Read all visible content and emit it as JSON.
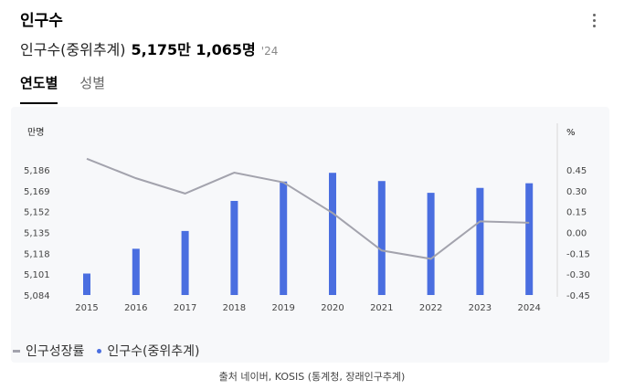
{
  "header": {
    "title": "인구수",
    "metric_label": "인구수(중위추계)",
    "metric_value": "5,175만 1,065명",
    "metric_year": "'24"
  },
  "tabs": [
    {
      "label": "연도별",
      "active": true
    },
    {
      "label": "성별",
      "active": false
    }
  ],
  "icons": {
    "more": "vertical-ellipsis-icon"
  },
  "colors": {
    "bar": "#4a6ee0",
    "line": "#a3a3ad"
  },
  "chart_data": {
    "type": "bar+line",
    "categories": [
      "2015",
      "2016",
      "2017",
      "2018",
      "2019",
      "2020",
      "2021",
      "2022",
      "2023",
      "2024"
    ],
    "series": [
      {
        "name": "인구수(중위추계)",
        "type": "bar",
        "axis": "left",
        "values": [
          5101.5,
          5121.7,
          5136.2,
          5160.7,
          5176.5,
          5183.6,
          5176.9,
          5167.3,
          5171.3,
          5175.1
        ]
      },
      {
        "name": "인구성장률",
        "type": "line",
        "axis": "right",
        "values": [
          0.53,
          0.39,
          0.28,
          0.43,
          0.36,
          0.14,
          -0.13,
          -0.19,
          0.08,
          0.07
        ]
      }
    ],
    "y_left": {
      "label": "만명",
      "ticks": [
        "5,084",
        "5,101",
        "5,118",
        "5,135",
        "5,152",
        "5,169",
        "5,186"
      ],
      "min": 5084,
      "max": 5186
    },
    "y_right": {
      "label": "%",
      "ticks": [
        "-0.45",
        "-0.30",
        "-0.15",
        "0.00",
        "0.15",
        "0.30",
        "0.45"
      ],
      "min": -0.45,
      "max": 0.45
    },
    "legend_position": "bottom-left",
    "grid": false
  },
  "footer": {
    "source": "출처 네이버, KOSIS (통계청, 장래인구추계)"
  }
}
